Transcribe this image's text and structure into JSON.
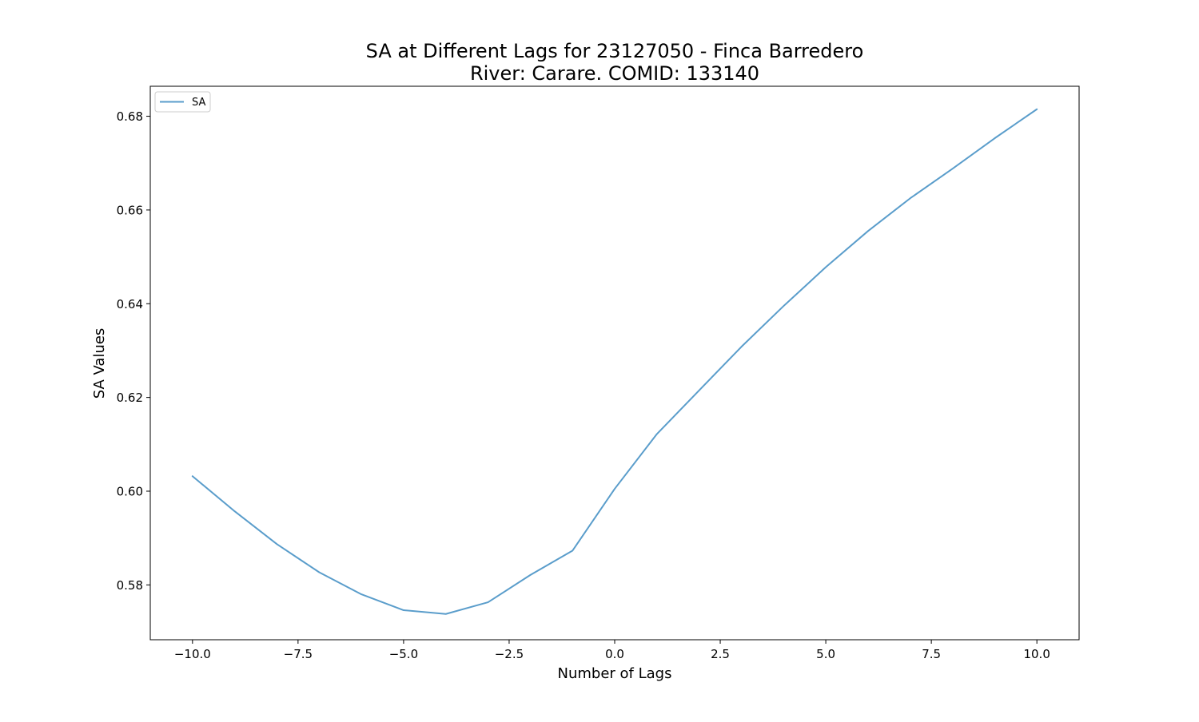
{
  "chart_data": {
    "type": "line",
    "title": "SA at Different Lags for 23127050 - Finca Barredero",
    "subtitle": "River: Carare. COMID: 133140",
    "xlabel": "Number of Lags",
    "ylabel": "SA Values",
    "xlim": [
      -11,
      11
    ],
    "ylim": [
      0.5683,
      0.6864
    ],
    "x_ticks": [
      -10.0,
      -7.5,
      -5.0,
      -2.5,
      0.0,
      2.5,
      5.0,
      7.5,
      10.0
    ],
    "x_tick_labels": [
      "−10.0",
      "−7.5",
      "−5.0",
      "−2.5",
      "0.0",
      "2.5",
      "5.0",
      "7.5",
      "10.0"
    ],
    "y_ticks": [
      0.58,
      0.6,
      0.62,
      0.64,
      0.66,
      0.68
    ],
    "y_tick_labels": [
      "0.58",
      "0.60",
      "0.62",
      "0.64",
      "0.66",
      "0.68"
    ],
    "grid": false,
    "legend_position": "top-left",
    "series": [
      {
        "name": "SA",
        "color": "#5a9dcb",
        "x": [
          -10,
          -9,
          -8,
          -7,
          -6,
          -5,
          -4,
          -3,
          -2,
          -1,
          0,
          1,
          2,
          3,
          4,
          5,
          6,
          7,
          8,
          9,
          10
        ],
        "y": [
          0.6032,
          0.5957,
          0.5887,
          0.5827,
          0.578,
          0.5746,
          0.5738,
          0.5763,
          0.5821,
          0.5873,
          0.6005,
          0.6122,
          0.6215,
          0.6308,
          0.6395,
          0.6478,
          0.6555,
          0.6625,
          0.6688,
          0.6753,
          0.6815
        ]
      }
    ]
  }
}
